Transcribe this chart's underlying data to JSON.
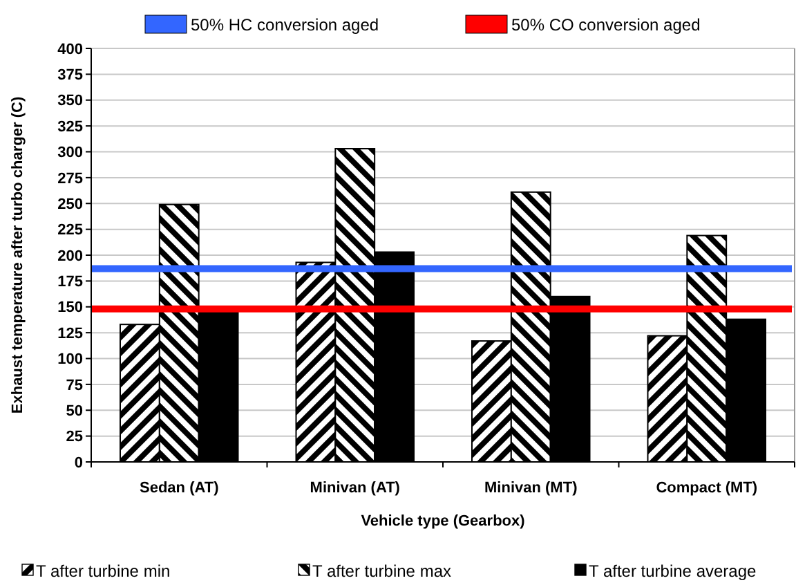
{
  "chart_data": {
    "type": "bar",
    "xlabel": "Vehicle type (Gearbox)",
    "ylabel": "Exhaust temperature after turbo charger (C)",
    "categories": [
      "Sedan (AT)",
      "Minivan (AT)",
      "Minivan (MT)",
      "Compact (MT)"
    ],
    "series": [
      {
        "name": "T after turbine min",
        "color": "#000000",
        "values": [
          133,
          193,
          117,
          122
        ]
      },
      {
        "name": "T after turbine max",
        "color": "#000000",
        "values": [
          249,
          303,
          261,
          219
        ]
      },
      {
        "name": "T after turbine average",
        "color": "#000000",
        "values": [
          148,
          203,
          160,
          138
        ]
      }
    ],
    "ylim": [
      0,
      400
    ],
    "yticks": [
      0,
      25,
      50,
      75,
      100,
      125,
      150,
      175,
      200,
      225,
      250,
      275,
      300,
      325,
      350,
      375,
      400
    ],
    "grid": "y",
    "legend": "bottom",
    "ref_lines": [
      {
        "axis": "y",
        "value": 187,
        "label": "50% HC conversion aged",
        "color": "#3366ff"
      },
      {
        "axis": "y",
        "value": 148,
        "label": "50% CO conversion aged",
        "color": "#ff0000"
      }
    ]
  }
}
